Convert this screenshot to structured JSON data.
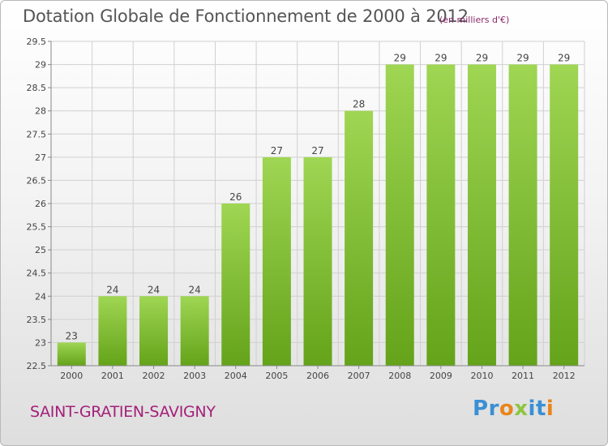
{
  "header": {
    "title": "Dotation Globale de Fonctionnement de 2000 à 2012",
    "subtitle": "(en milliers d'€)"
  },
  "footer": {
    "place_name": "SAINT-GRATIEN-SAVIGNY",
    "logo_text": "Proxiti",
    "logo_letters": [
      {
        "ch": "P",
        "color": "#3b8fd4"
      },
      {
        "ch": "r",
        "color": "#3b8fd4"
      },
      {
        "ch": "o",
        "color": "#e8851c"
      },
      {
        "ch": "x",
        "color": "#8cc63f"
      },
      {
        "ch": "i",
        "color": "#3b8fd4"
      },
      {
        "ch": "t",
        "color": "#3b8fd4"
      },
      {
        "ch": "i",
        "color": "#e8851c"
      }
    ]
  },
  "colors": {
    "bar_light": "#9fd653",
    "bar_dark": "#64a31a",
    "grid": "#d0d0d0",
    "text": "#444444",
    "title": "#555555",
    "accent": "#a4207a"
  },
  "chart_data": {
    "type": "bar",
    "title": "Dotation Globale de Fonctionnement de 2000 à 2012",
    "subtitle": "(en milliers d'€)",
    "xlabel": "",
    "ylabel": "",
    "ylim": [
      22.5,
      29.5
    ],
    "ytick_step": 0.5,
    "yticks": [
      "22.5",
      "23",
      "23.5",
      "24",
      "24.5",
      "25",
      "25.5",
      "26",
      "26.5",
      "27",
      "27.5",
      "28",
      "28.5",
      "29",
      "29.5"
    ],
    "grid": true,
    "categories": [
      "2000",
      "2001",
      "2002",
      "2003",
      "2004",
      "2005",
      "2006",
      "2007",
      "2008",
      "2009",
      "2010",
      "2011",
      "2012"
    ],
    "values": [
      23,
      24,
      24,
      24,
      26,
      27,
      27,
      28,
      29,
      29,
      29,
      29,
      29
    ],
    "labels": [
      "23",
      "24",
      "24",
      "24",
      "26",
      "27",
      "27",
      "28",
      "29",
      "29",
      "29",
      "29",
      "29"
    ]
  }
}
